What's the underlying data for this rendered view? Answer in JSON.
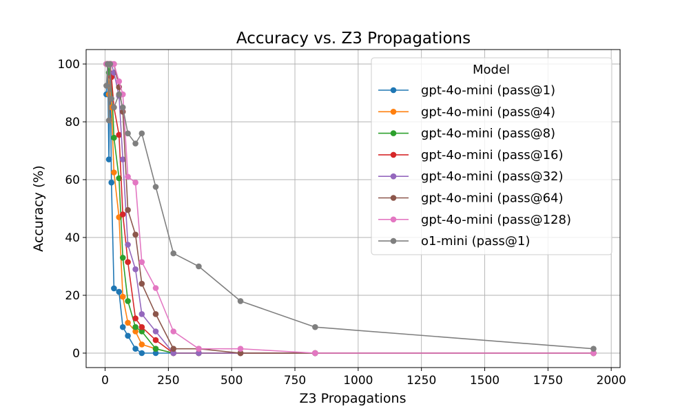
{
  "chart_data": {
    "type": "line",
    "title": "Accuracy vs. Z3 Propagations",
    "xlabel": "Z3 Propagations",
    "ylabel": "Accuracy (%)",
    "xlim": [
      -75,
      2035
    ],
    "ylim": [
      -5,
      105
    ],
    "xticks": [
      0,
      250,
      500,
      750,
      1000,
      1250,
      1500,
      1750,
      2000
    ],
    "yticks": [
      0,
      20,
      40,
      60,
      80,
      100
    ],
    "grid": true,
    "legend": {
      "title": "Model",
      "placement": "upper right"
    },
    "series": [
      {
        "name": "gpt-4o-mini (pass@1)",
        "color": "#1f77b4",
        "x": [
          5,
          10,
          15,
          20,
          25,
          35,
          55,
          70,
          90,
          120,
          145,
          200,
          270,
          370,
          535,
          830,
          1930
        ],
        "y": [
          89.5,
          100,
          67,
          100,
          59,
          22.4,
          21.2,
          9,
          6,
          1.5,
          0,
          0,
          0,
          0,
          0,
          0,
          0
        ]
      },
      {
        "name": "gpt-4o-mini (pass@4)",
        "color": "#ff7f0e",
        "x": [
          5,
          10,
          15,
          20,
          25,
          35,
          55,
          70,
          90,
          120,
          145,
          200,
          270,
          370,
          535,
          830,
          1930
        ],
        "y": [
          100,
          100,
          89.5,
          100,
          85,
          62.5,
          47,
          19.5,
          10.5,
          7.5,
          3,
          1.5,
          0,
          0,
          0,
          0,
          0
        ]
      },
      {
        "name": "gpt-4o-mini (pass@8)",
        "color": "#2ca02c",
        "x": [
          5,
          10,
          15,
          20,
          25,
          35,
          55,
          70,
          90,
          120,
          145,
          200,
          270,
          370,
          535,
          830,
          1930
        ],
        "y": [
          100,
          100,
          97,
          100,
          95.5,
          74.5,
          60.5,
          33,
          18,
          9,
          7.5,
          1.5,
          0,
          0,
          0,
          0,
          0
        ]
      },
      {
        "name": "gpt-4o-mini (pass@16)",
        "color": "#d62728",
        "x": [
          5,
          10,
          15,
          20,
          25,
          35,
          55,
          70,
          90,
          120,
          145,
          200,
          270,
          370,
          535,
          830,
          1930
        ],
        "y": [
          100,
          100,
          100,
          100,
          95.5,
          85,
          75.5,
          48,
          31.5,
          12,
          9,
          4.5,
          0,
          0,
          0,
          0,
          0
        ]
      },
      {
        "name": "gpt-4o-mini (pass@32)",
        "color": "#9467bd",
        "x": [
          5,
          10,
          15,
          20,
          25,
          35,
          55,
          70,
          90,
          120,
          145,
          200,
          270,
          370,
          535,
          830,
          1930
        ],
        "y": [
          100,
          100,
          100,
          100,
          100,
          97,
          89,
          67,
          37.5,
          29,
          13.5,
          7.5,
          0,
          0,
          0,
          0,
          0
        ]
      },
      {
        "name": "gpt-4o-mini (pass@64)",
        "color": "#8c564b",
        "x": [
          5,
          10,
          15,
          20,
          25,
          35,
          55,
          70,
          90,
          120,
          145,
          200,
          270,
          370,
          535,
          830,
          1930
        ],
        "y": [
          100,
          100,
          100,
          100,
          100,
          100,
          92,
          83.5,
          49.5,
          41,
          24,
          13.5,
          1.5,
          1.5,
          0,
          0,
          0
        ]
      },
      {
        "name": "gpt-4o-mini (pass@128)",
        "color": "#e377c2",
        "x": [
          5,
          10,
          15,
          20,
          25,
          35,
          55,
          70,
          90,
          120,
          145,
          200,
          270,
          370,
          535,
          830,
          1930
        ],
        "y": [
          100,
          100,
          100,
          100,
          100,
          100,
          94,
          89.5,
          61,
          59,
          31.5,
          22.5,
          7.5,
          1.5,
          1.5,
          0,
          0
        ]
      },
      {
        "name": "o1-mini (pass@1)",
        "color": "#7f7f7f",
        "x": [
          5,
          10,
          15,
          20,
          25,
          35,
          55,
          70,
          90,
          120,
          145,
          200,
          270,
          370,
          535,
          830,
          1930
        ],
        "y": [
          92.5,
          100,
          80.5,
          100,
          88,
          85,
          89.5,
          85,
          76,
          72.5,
          76,
          57.5,
          34.5,
          30,
          18,
          9,
          1.5
        ]
      }
    ]
  }
}
